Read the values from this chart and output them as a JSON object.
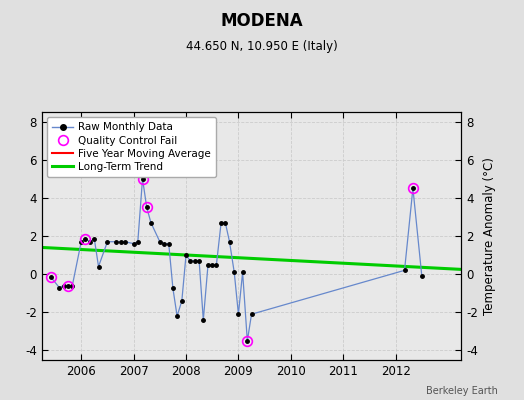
{
  "title": "MODENA",
  "subtitle": "44.650 N, 10.950 E (Italy)",
  "credit": "Berkeley Earth",
  "ylabel": "Temperature Anomaly (°C)",
  "ylim": [
    -4.5,
    8.5
  ],
  "xlim": [
    2005.25,
    2013.25
  ],
  "xticks": [
    2006,
    2007,
    2008,
    2009,
    2010,
    2011,
    2012
  ],
  "yticks": [
    -4,
    -2,
    0,
    2,
    4,
    6,
    8
  ],
  "bg_color": "#e0e0e0",
  "plot_bg": "#e8e8e8",
  "raw_x": [
    2005.42,
    2005.58,
    2005.67,
    2005.75,
    2005.83,
    2006.0,
    2006.08,
    2006.17,
    2006.25,
    2006.33,
    2006.5,
    2006.67,
    2006.75,
    2006.83,
    2007.0,
    2007.08,
    2007.17,
    2007.25,
    2007.33,
    2007.5,
    2007.58,
    2007.67,
    2007.75,
    2007.83,
    2007.92,
    2008.0,
    2008.08,
    2008.17,
    2008.25,
    2008.33,
    2008.42,
    2008.5,
    2008.58,
    2008.67,
    2008.75,
    2008.83,
    2008.92,
    2009.0,
    2009.08,
    2009.17,
    2009.25,
    2012.17,
    2012.33,
    2012.5
  ],
  "raw_y": [
    -0.15,
    -0.7,
    -0.6,
    -0.6,
    -0.6,
    1.7,
    1.85,
    1.7,
    1.85,
    0.4,
    1.7,
    1.7,
    1.7,
    1.7,
    1.6,
    1.7,
    5.0,
    3.5,
    2.7,
    1.7,
    1.6,
    1.6,
    -0.75,
    -2.2,
    -1.4,
    1.0,
    0.7,
    0.7,
    0.7,
    -2.4,
    0.5,
    0.5,
    0.5,
    2.7,
    2.7,
    1.7,
    0.1,
    -2.1,
    0.1,
    -3.5,
    -2.1,
    0.2,
    4.5,
    -0.1
  ],
  "qc_x": [
    2005.42,
    2005.75,
    2006.08,
    2007.17,
    2007.25,
    2009.17,
    2012.33
  ],
  "qc_y": [
    -0.15,
    -0.6,
    1.85,
    5.0,
    3.5,
    -3.5,
    4.5
  ],
  "trend_x": [
    2005.25,
    2013.25
  ],
  "trend_y": [
    1.4,
    0.25
  ],
  "legend_labels": [
    "Raw Monthly Data",
    "Quality Control Fail",
    "Five Year Moving Average",
    "Long-Term Trend"
  ],
  "line_color": "#6688cc",
  "marker_color": "black",
  "qc_color": "magenta",
  "trend_color": "#00cc00",
  "mavg_color": "red"
}
